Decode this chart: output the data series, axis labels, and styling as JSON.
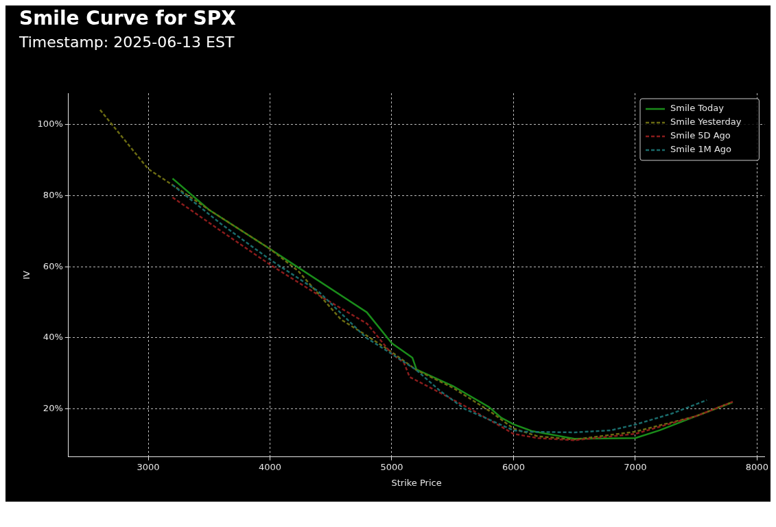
{
  "chart_data": {
    "type": "line",
    "title": "Smile Curve for SPX",
    "subtitle": "Timestamp: 2025-06-13 EST",
    "xlabel": "Strike Price",
    "ylabel": "IV",
    "xlim": [
      2345,
      8062
    ],
    "xticks": [
      3000,
      4000,
      5000,
      6000,
      7000,
      8000
    ],
    "ylim": [
      6.5,
      108.8
    ],
    "yticks": [
      {
        "value": 20,
        "label": "20%"
      },
      {
        "value": 40,
        "label": "40%"
      },
      {
        "value": 60,
        "label": "60%"
      },
      {
        "value": 80,
        "label": "80%"
      },
      {
        "value": 100,
        "label": "100%"
      }
    ],
    "grid": true,
    "legend": "top right",
    "marker": "none",
    "series": [
      {
        "name": "Smile Today",
        "color": "#1a8c1a",
        "line_style": "solid",
        "x": [
          3200,
          3500,
          4000,
          4200,
          4795,
          5000,
          5170,
          5203,
          5500,
          5800,
          5900,
          6000,
          6150,
          6500,
          7000,
          7200,
          7500,
          7797
        ],
        "values": [
          84.8,
          76,
          65,
          60.5,
          47.2,
          38.5,
          34.4,
          31.1,
          26.5,
          20.5,
          17.5,
          15.7,
          13.8,
          11.6,
          11.8,
          14,
          18,
          21.8
        ]
      },
      {
        "name": "Smile Yesterday",
        "color": "#6b6b12",
        "line_style": "dashed",
        "x": [
          2605,
          3000,
          3190,
          3500,
          4000,
          4232,
          4582,
          4800,
          5000,
          5200,
          5500,
          5800,
          6000,
          6200,
          6500,
          7000,
          7500,
          7800
        ],
        "values": [
          104.1,
          87.5,
          83.2,
          76,
          65,
          58.8,
          45.2,
          40.5,
          36,
          31,
          26,
          19.5,
          14.5,
          12.3,
          11.4,
          13.6,
          18,
          22
        ]
      },
      {
        "name": "Smile 5D Ago",
        "color": "#8b1c1c",
        "line_style": "dashed",
        "x": [
          3200,
          3600,
          4000,
          4400,
          4797,
          5000,
          5100,
          5147,
          5400,
          5655,
          5900,
          6000,
          6200,
          6500,
          7000,
          7500,
          7800
        ],
        "values": [
          79.5,
          70,
          60.6,
          52,
          44,
          35.5,
          33,
          29,
          24.5,
          19.8,
          15,
          13,
          11.8,
          11.2,
          13,
          18,
          22
        ]
      },
      {
        "name": "Smile 1M Ago",
        "color": "#1a6b6b",
        "line_style": "dashed",
        "x": [
          3200,
          3600,
          4000,
          4400,
          4791,
          5000,
          5200,
          5400,
          5600,
          5900,
          6000,
          6100,
          6500,
          6800,
          7000,
          7300,
          7588
        ],
        "values": [
          83,
          72,
          62,
          53,
          40,
          35.5,
          31,
          25,
          20,
          15.5,
          14,
          13.6,
          13.4,
          14,
          15.6,
          18.7,
          22.5
        ]
      }
    ]
  }
}
